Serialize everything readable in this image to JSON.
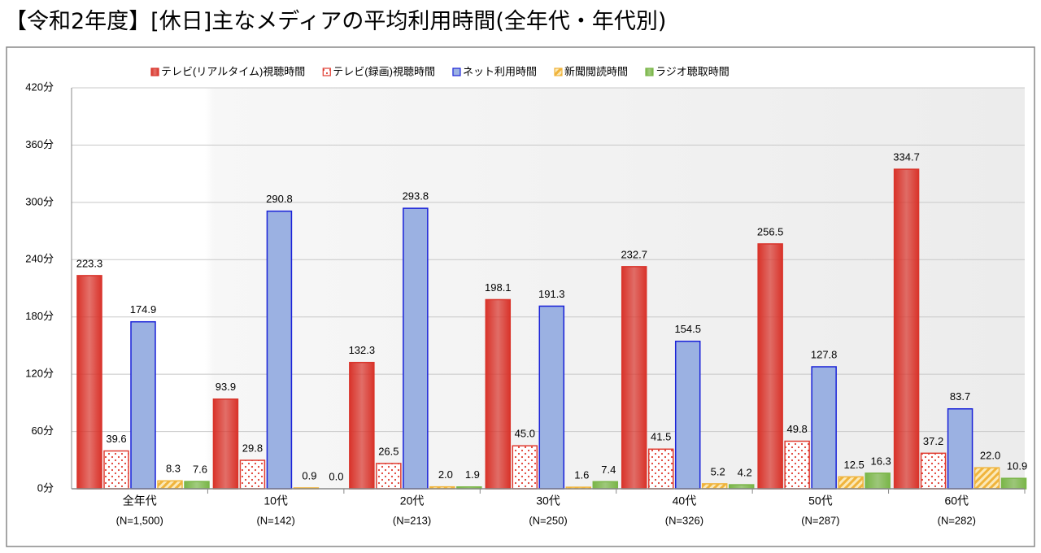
{
  "chart_data": {
    "type": "bar",
    "title": "【令和2年度】[休日]主なメディアの平均利用時間(全年代・年代別)",
    "categories": [
      "全年代",
      "10代",
      "20代",
      "30代",
      "40代",
      "50代",
      "60代"
    ],
    "category_notes": [
      "(N=1,500)",
      "(N=142)",
      "(N=213)",
      "(N=250)",
      "(N=326)",
      "(N=287)",
      "(N=282)"
    ],
    "series": [
      {
        "name": "テレビ(リアルタイム)視聴時間",
        "color": "#d9342b",
        "pattern": "solid",
        "values": [
          223.3,
          93.9,
          132.3,
          198.1,
          232.7,
          256.5,
          334.7
        ],
        "value_labels": [
          "223.3",
          "93.9",
          "132.3",
          "198.1",
          "232.7",
          "256.5",
          "334.7"
        ]
      },
      {
        "name": "テレビ(録画)視聴時間",
        "color": "#e03c31",
        "pattern": "dots",
        "values": [
          39.6,
          29.8,
          26.5,
          45.0,
          41.5,
          49.8,
          37.2
        ],
        "value_labels": [
          "39.6",
          "29.8",
          "26.5",
          "45.0",
          "41.5",
          "49.8",
          "37.2"
        ]
      },
      {
        "name": "ネット利用時間",
        "color": "#1a22d8",
        "pattern": "fill-light",
        "values": [
          174.9,
          290.8,
          293.8,
          191.3,
          154.5,
          127.8,
          83.7
        ],
        "value_labels": [
          "174.9",
          "290.8",
          "293.8",
          "191.3",
          "154.5",
          "127.8",
          "83.7"
        ]
      },
      {
        "name": "新聞閲読時間",
        "color": "#f0b43c",
        "pattern": "hatch",
        "values": [
          8.3,
          0.9,
          2.0,
          1.6,
          5.2,
          12.5,
          22.0
        ],
        "value_labels": [
          "8.3",
          "0.9",
          "2.0",
          "1.6",
          "5.2",
          "12.5",
          "22.0"
        ]
      },
      {
        "name": "ラジオ聴取時間",
        "color": "#7ab648",
        "pattern": "solid",
        "values": [
          7.6,
          0.0,
          1.9,
          7.4,
          4.2,
          16.3,
          10.9
        ],
        "value_labels": [
          "7.6",
          "0.0",
          "1.9",
          "7.4",
          "4.2",
          "16.3",
          "10.9"
        ]
      }
    ],
    "ylim": [
      0,
      420
    ],
    "yticks": [
      {
        "value": 0,
        "label": "0分"
      },
      {
        "value": 60,
        "label": "60分"
      },
      {
        "value": 120,
        "label": "120分"
      },
      {
        "value": 180,
        "label": "180分"
      },
      {
        "value": 240,
        "label": "240分"
      },
      {
        "value": 300,
        "label": "300分"
      },
      {
        "value": 360,
        "label": "360分"
      },
      {
        "value": 420,
        "label": "420分"
      }
    ],
    "grid": true
  }
}
